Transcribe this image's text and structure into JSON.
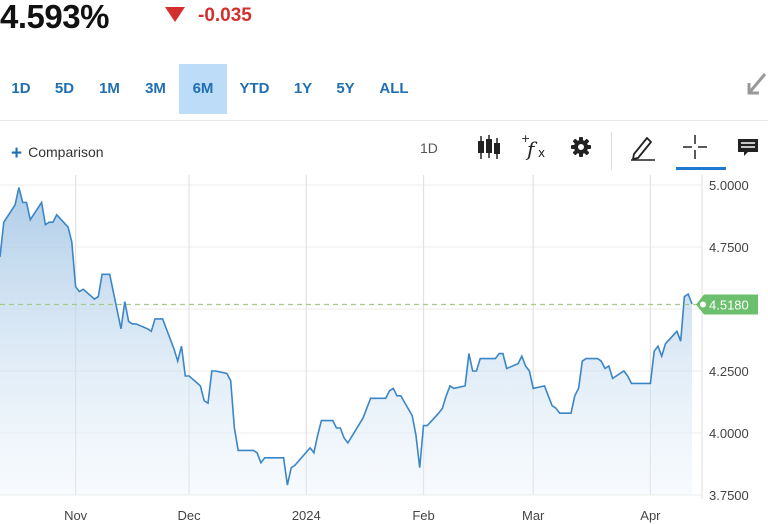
{
  "quote": {
    "price": "4.593%",
    "change": "-0.035",
    "direction_icon": "down-triangle",
    "change_color": "#d32f2f"
  },
  "ranges": [
    "1D",
    "5D",
    "1M",
    "3M",
    "6M",
    "YTD",
    "1Y",
    "5Y",
    "ALL"
  ],
  "active_range": "6M",
  "toolbar": {
    "comparison_label": "Comparison",
    "interval_label": "1D",
    "tools": [
      "candlestick-icon",
      "function-icon",
      "gear-icon",
      "pencil-icon",
      "crosshair-icon",
      "comment-icon"
    ]
  },
  "chart_data": {
    "type": "area",
    "x_ticks": [
      "Nov",
      "Dec",
      "2024",
      "Feb",
      "Mar",
      "Apr"
    ],
    "y_ticks": [
      "3.7500",
      "4.0000",
      "4.2500",
      "4.5000",
      "4.7500",
      "5.0000"
    ],
    "ylim": [
      3.75,
      5.0
    ],
    "grid": true,
    "last_value_label": "4.5180",
    "reference_line": 4.518,
    "line_color": "#3a86c8",
    "label_color": "#6cbf6c",
    "series": [
      {
        "x": [
          "2023-10-12",
          "2023-10-13",
          "2023-10-16",
          "2023-10-17",
          "2023-10-18",
          "2023-10-19",
          "2023-10-20",
          "2023-10-23",
          "2023-10-24",
          "2023-10-25",
          "2023-10-26",
          "2023-10-27",
          "2023-10-30",
          "2023-10-31",
          "2023-11-01",
          "2023-11-02",
          "2023-11-03",
          "2023-11-06",
          "2023-11-07",
          "2023-11-08",
          "2023-11-09",
          "2023-11-10",
          "2023-11-13",
          "2023-11-14",
          "2023-11-15",
          "2023-11-16",
          "2023-11-17",
          "2023-11-20",
          "2023-11-21",
          "2023-11-22",
          "2023-11-24",
          "2023-11-27",
          "2023-11-28",
          "2023-11-29",
          "2023-11-30",
          "2023-12-01",
          "2023-12-04",
          "2023-12-05",
          "2023-12-06",
          "2023-12-07",
          "2023-12-08",
          "2023-12-11",
          "2023-12-12",
          "2023-12-13",
          "2023-12-14",
          "2023-12-15",
          "2023-12-18",
          "2023-12-19",
          "2023-12-20",
          "2023-12-21",
          "2023-12-22",
          "2023-12-26",
          "2023-12-27",
          "2023-12-28",
          "2023-12-29",
          "2024-01-02",
          "2024-01-03",
          "2024-01-04",
          "2024-01-05",
          "2024-01-08",
          "2024-01-09",
          "2024-01-10",
          "2024-01-11",
          "2024-01-12",
          "2024-01-16",
          "2024-01-17",
          "2024-01-18",
          "2024-01-19",
          "2024-01-22",
          "2024-01-23",
          "2024-01-24",
          "2024-01-25",
          "2024-01-26",
          "2024-01-29",
          "2024-01-30",
          "2024-01-31",
          "2024-02-01",
          "2024-02-02",
          "2024-02-05",
          "2024-02-06",
          "2024-02-07",
          "2024-02-08",
          "2024-02-09",
          "2024-02-12",
          "2024-02-13",
          "2024-02-14",
          "2024-02-15",
          "2024-02-16",
          "2024-02-20",
          "2024-02-21",
          "2024-02-22",
          "2024-02-23",
          "2024-02-26",
          "2024-02-27",
          "2024-02-28",
          "2024-02-29",
          "2024-03-01",
          "2024-03-04",
          "2024-03-05",
          "2024-03-06",
          "2024-03-07",
          "2024-03-08",
          "2024-03-11",
          "2024-03-12",
          "2024-03-13",
          "2024-03-14",
          "2024-03-15",
          "2024-03-18",
          "2024-03-19",
          "2024-03-20",
          "2024-03-21",
          "2024-03-22",
          "2024-03-25",
          "2024-03-26",
          "2024-03-27",
          "2024-03-28",
          "2024-04-01",
          "2024-04-02",
          "2024-04-03",
          "2024-04-04",
          "2024-04-05",
          "2024-04-08",
          "2024-04-09",
          "2024-04-10",
          "2024-04-11",
          "2024-04-12"
        ],
        "values": [
          4.71,
          4.85,
          4.92,
          4.99,
          4.93,
          4.93,
          4.86,
          4.93,
          4.84,
          4.85,
          4.85,
          4.88,
          4.83,
          4.77,
          4.59,
          4.57,
          4.58,
          4.54,
          4.55,
          4.64,
          4.64,
          4.64,
          4.42,
          4.53,
          4.45,
          4.44,
          4.44,
          4.42,
          4.41,
          4.46,
          4.46,
          4.34,
          4.29,
          4.35,
          4.23,
          4.23,
          4.19,
          4.13,
          4.12,
          4.25,
          4.25,
          4.24,
          4.21,
          4.02,
          3.93,
          3.93,
          3.93,
          3.92,
          3.88,
          3.9,
          3.9,
          3.9,
          3.79,
          3.86,
          3.87,
          3.94,
          3.92,
          3.99,
          4.05,
          4.05,
          4.02,
          4.02,
          3.98,
          3.96,
          4.06,
          4.1,
          4.14,
          4.14,
          4.14,
          4.17,
          4.18,
          4.15,
          4.15,
          4.07,
          3.99,
          3.86,
          4.03,
          4.03,
          4.08,
          4.1,
          4.15,
          4.19,
          4.18,
          4.19,
          4.32,
          4.25,
          4.25,
          4.3,
          4.3,
          4.32,
          4.32,
          4.26,
          4.28,
          4.31,
          4.27,
          4.25,
          4.18,
          4.19,
          4.15,
          4.11,
          4.1,
          4.08,
          4.08,
          4.15,
          4.18,
          4.29,
          4.3,
          4.3,
          4.29,
          4.26,
          4.27,
          4.22,
          4.25,
          4.23,
          4.2,
          4.2,
          4.2,
          4.33,
          4.35,
          4.31,
          4.36,
          4.41,
          4.37,
          4.55,
          4.56,
          4.52
        ]
      }
    ]
  }
}
